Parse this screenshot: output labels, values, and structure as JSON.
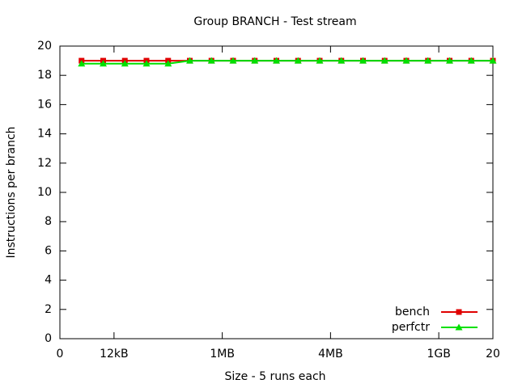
{
  "chart_data": {
    "type": "line",
    "title": "Group BRANCH - Test stream",
    "x_label": "Size - 5 runs each",
    "y_label": "Instructions per branch",
    "x": [
      1,
      2,
      3,
      4,
      5,
      6,
      7,
      8,
      9,
      10,
      11,
      12,
      13,
      14,
      15,
      16,
      17,
      18,
      19,
      20
    ],
    "series": [
      {
        "name": "bench",
        "color": "#e00000",
        "marker": "square",
        "values": [
          19,
          19,
          19,
          19,
          19,
          19,
          19,
          19,
          19,
          19,
          19,
          19,
          19,
          19,
          19,
          19,
          19,
          19,
          19,
          19
        ]
      },
      {
        "name": "perfctr",
        "color": "#00e000",
        "marker": "triangle",
        "values": [
          18.8,
          18.8,
          18.8,
          18.8,
          18.8,
          19,
          19,
          19,
          19,
          19,
          19,
          19,
          19,
          19,
          19,
          19,
          19,
          19,
          19,
          19
        ]
      }
    ],
    "xlim": [
      0,
      20
    ],
    "xticks": [
      0,
      {
        "value": 2.5,
        "label": "12kB"
      },
      {
        "value": 7.5,
        "label": "1MB"
      },
      {
        "value": 12.5,
        "label": "4MB"
      },
      {
        "value": 17.5,
        "label": "1GB"
      },
      20
    ],
    "ylim": [
      0,
      20
    ],
    "yticks": [
      0,
      2,
      4,
      6,
      8,
      10,
      12,
      14,
      16,
      18,
      20
    ],
    "legend": "bottom-right"
  }
}
